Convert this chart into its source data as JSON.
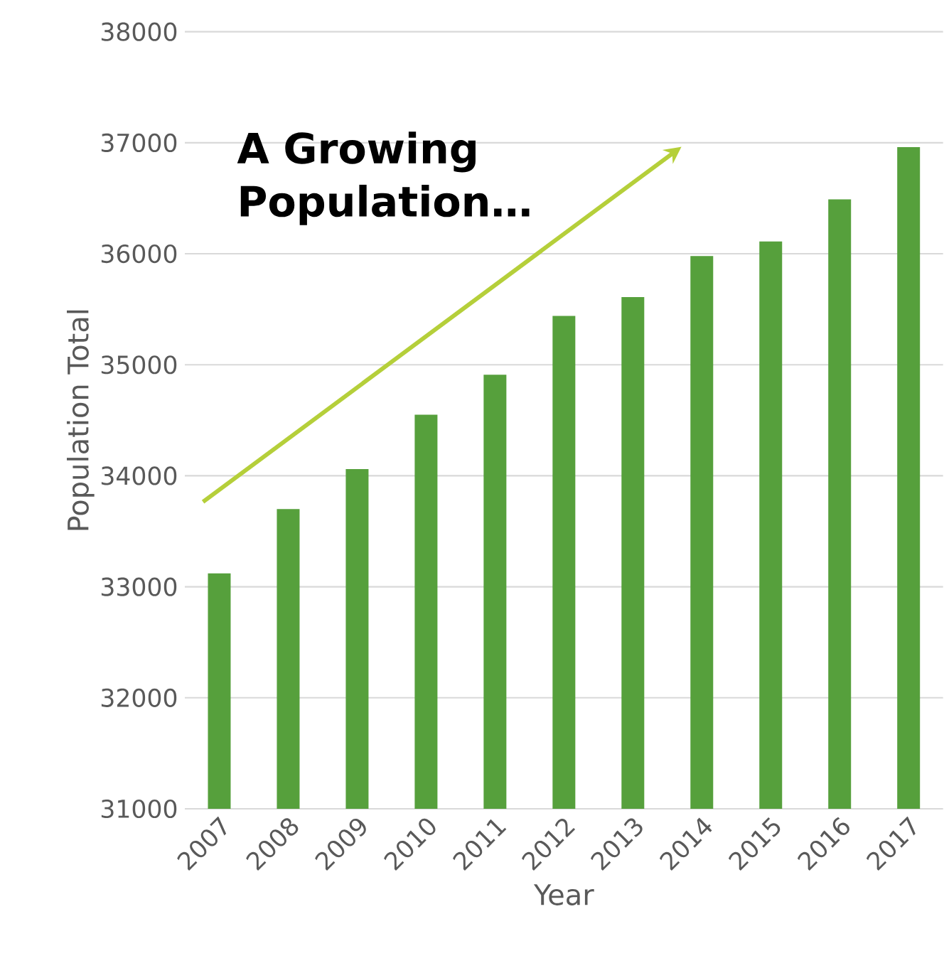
{
  "chart_data": {
    "type": "bar",
    "categories": [
      "2007",
      "2008",
      "2009",
      "2010",
      "2011",
      "2012",
      "2013",
      "2014",
      "2015",
      "2016",
      "2017"
    ],
    "values": [
      33120,
      33700,
      34060,
      34550,
      34910,
      35440,
      35610,
      35980,
      36110,
      36490,
      36960
    ],
    "color": "#56a03c",
    "xlabel": "Year",
    "ylabel": "Population Total",
    "ylim": [
      31000,
      38000
    ],
    "yticks": [
      31000,
      32000,
      33000,
      34000,
      35000,
      36000,
      37000,
      38000
    ],
    "grid": "y",
    "annotations": [
      "A Growing Population…"
    ]
  }
}
